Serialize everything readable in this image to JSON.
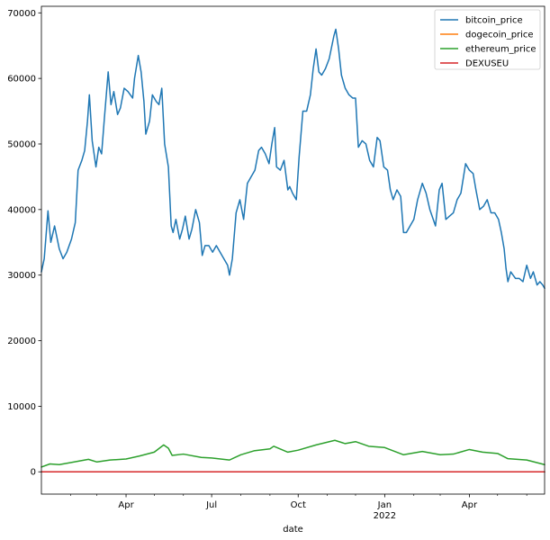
{
  "chart_data": {
    "type": "line",
    "xlabel": "date",
    "ylabel": "",
    "ylim": [
      -3400,
      71000
    ],
    "xlim": [
      "2021-01-01",
      "2022-06-20"
    ],
    "grid": false,
    "legend_position": "top-right",
    "y_ticks": [
      0,
      10000,
      20000,
      30000,
      40000,
      50000,
      60000,
      70000
    ],
    "x_ticks": [
      {
        "date": "2021-04-01",
        "label": "Apr",
        "sublabel": ""
      },
      {
        "date": "2021-07-01",
        "label": "Jul",
        "sublabel": ""
      },
      {
        "date": "2021-10-01",
        "label": "Oct",
        "sublabel": ""
      },
      {
        "date": "2022-01-01",
        "label": "Jan",
        "sublabel": "2022"
      },
      {
        "date": "2022-04-01",
        "label": "Apr",
        "sublabel": ""
      }
    ],
    "x_minor_ticks": [
      "2021-02-01",
      "2021-03-01",
      "2021-05-01",
      "2021-06-01",
      "2021-08-01",
      "2021-09-01",
      "2021-11-01",
      "2021-12-01",
      "2022-02-01",
      "2022-03-01",
      "2022-05-01",
      "2022-06-01"
    ],
    "series": [
      {
        "name": "bitcoin_price",
        "color": "#1f77b4",
        "points": [
          [
            "2021-01-01",
            30500
          ],
          [
            "2021-01-04",
            32500
          ],
          [
            "2021-01-08",
            39800
          ],
          [
            "2021-01-11",
            35000
          ],
          [
            "2021-01-15",
            37500
          ],
          [
            "2021-01-20",
            34000
          ],
          [
            "2021-01-24",
            32500
          ],
          [
            "2021-01-28",
            33500
          ],
          [
            "2021-02-02",
            35500
          ],
          [
            "2021-02-06",
            38000
          ],
          [
            "2021-02-09",
            46000
          ],
          [
            "2021-02-13",
            47500
          ],
          [
            "2021-02-16",
            49000
          ],
          [
            "2021-02-19",
            53500
          ],
          [
            "2021-02-21",
            57500
          ],
          [
            "2021-02-24",
            50500
          ],
          [
            "2021-02-28",
            46500
          ],
          [
            "2021-03-03",
            49500
          ],
          [
            "2021-03-06",
            48500
          ],
          [
            "2021-03-09",
            54000
          ],
          [
            "2021-03-13",
            61000
          ],
          [
            "2021-03-16",
            56000
          ],
          [
            "2021-03-19",
            58000
          ],
          [
            "2021-03-23",
            54500
          ],
          [
            "2021-03-26",
            55500
          ],
          [
            "2021-03-30",
            58500
          ],
          [
            "2021-04-03",
            58000
          ],
          [
            "2021-04-08",
            57000
          ],
          [
            "2021-04-10",
            60000
          ],
          [
            "2021-04-14",
            63500
          ],
          [
            "2021-04-17",
            61000
          ],
          [
            "2021-04-20",
            56500
          ],
          [
            "2021-04-22",
            51500
          ],
          [
            "2021-04-26",
            53500
          ],
          [
            "2021-04-29",
            57500
          ],
          [
            "2021-05-03",
            56500
          ],
          [
            "2021-05-06",
            56000
          ],
          [
            "2021-05-09",
            58500
          ],
          [
            "2021-05-12",
            50000
          ],
          [
            "2021-05-16",
            46500
          ],
          [
            "2021-05-19",
            37500
          ],
          [
            "2021-05-21",
            36500
          ],
          [
            "2021-05-24",
            38500
          ],
          [
            "2021-05-28",
            35500
          ],
          [
            "2021-05-31",
            37000
          ],
          [
            "2021-06-03",
            39000
          ],
          [
            "2021-06-07",
            35500
          ],
          [
            "2021-06-10",
            37000
          ],
          [
            "2021-06-14",
            40000
          ],
          [
            "2021-06-18",
            38000
          ],
          [
            "2021-06-21",
            33000
          ],
          [
            "2021-06-24",
            34500
          ],
          [
            "2021-06-28",
            34500
          ],
          [
            "2021-07-02",
            33500
          ],
          [
            "2021-07-06",
            34500
          ],
          [
            "2021-07-10",
            33500
          ],
          [
            "2021-07-14",
            32500
          ],
          [
            "2021-07-18",
            31500
          ],
          [
            "2021-07-20",
            30000
          ],
          [
            "2021-07-23",
            32500
          ],
          [
            "2021-07-27",
            39500
          ],
          [
            "2021-07-31",
            41500
          ],
          [
            "2021-08-04",
            38500
          ],
          [
            "2021-08-08",
            44000
          ],
          [
            "2021-08-12",
            45000
          ],
          [
            "2021-08-16",
            46000
          ],
          [
            "2021-08-20",
            49000
          ],
          [
            "2021-08-23",
            49500
          ],
          [
            "2021-08-27",
            48500
          ],
          [
            "2021-08-31",
            47000
          ],
          [
            "2021-09-03",
            50000
          ],
          [
            "2021-09-06",
            52500
          ],
          [
            "2021-09-08",
            46500
          ],
          [
            "2021-09-12",
            46000
          ],
          [
            "2021-09-16",
            47500
          ],
          [
            "2021-09-20",
            43000
          ],
          [
            "2021-09-22",
            43500
          ],
          [
            "2021-09-25",
            42500
          ],
          [
            "2021-09-29",
            41500
          ],
          [
            "2021-10-02",
            48000
          ],
          [
            "2021-10-06",
            55000
          ],
          [
            "2021-10-10",
            55000
          ],
          [
            "2021-10-14",
            57500
          ],
          [
            "2021-10-17",
            61500
          ],
          [
            "2021-10-20",
            64500
          ],
          [
            "2021-10-23",
            61000
          ],
          [
            "2021-10-26",
            60500
          ],
          [
            "2021-10-30",
            61500
          ],
          [
            "2021-11-03",
            63000
          ],
          [
            "2021-11-08",
            66500
          ],
          [
            "2021-11-10",
            67500
          ],
          [
            "2021-11-13",
            64500
          ],
          [
            "2021-11-16",
            60500
          ],
          [
            "2021-11-20",
            58500
          ],
          [
            "2021-11-24",
            57500
          ],
          [
            "2021-11-28",
            57000
          ],
          [
            "2021-12-01",
            57000
          ],
          [
            "2021-12-04",
            49500
          ],
          [
            "2021-12-08",
            50500
          ],
          [
            "2021-12-12",
            50000
          ],
          [
            "2021-12-16",
            47500
          ],
          [
            "2021-12-20",
            46500
          ],
          [
            "2021-12-24",
            51000
          ],
          [
            "2021-12-27",
            50500
          ],
          [
            "2021-12-31",
            46500
          ],
          [
            "2022-01-04",
            46000
          ],
          [
            "2022-01-07",
            43000
          ],
          [
            "2022-01-10",
            41500
          ],
          [
            "2022-01-14",
            43000
          ],
          [
            "2022-01-18",
            42000
          ],
          [
            "2022-01-21",
            36500
          ],
          [
            "2022-01-24",
            36500
          ],
          [
            "2022-01-28",
            37500
          ],
          [
            "2022-02-01",
            38500
          ],
          [
            "2022-02-05",
            41500
          ],
          [
            "2022-02-10",
            44000
          ],
          [
            "2022-02-14",
            42500
          ],
          [
            "2022-02-18",
            40000
          ],
          [
            "2022-02-24",
            37500
          ],
          [
            "2022-02-28",
            43000
          ],
          [
            "2022-03-03",
            44000
          ],
          [
            "2022-03-07",
            38500
          ],
          [
            "2022-03-11",
            39000
          ],
          [
            "2022-03-15",
            39500
          ],
          [
            "2022-03-19",
            41500
          ],
          [
            "2022-03-23",
            42500
          ],
          [
            "2022-03-28",
            47000
          ],
          [
            "2022-04-01",
            46000
          ],
          [
            "2022-04-05",
            45500
          ],
          [
            "2022-04-08",
            43000
          ],
          [
            "2022-04-12",
            40000
          ],
          [
            "2022-04-16",
            40500
          ],
          [
            "2022-04-20",
            41500
          ],
          [
            "2022-04-24",
            39500
          ],
          [
            "2022-04-28",
            39500
          ],
          [
            "2022-05-02",
            38500
          ],
          [
            "2022-05-05",
            36500
          ],
          [
            "2022-05-08",
            34000
          ],
          [
            "2022-05-10",
            31000
          ],
          [
            "2022-05-12",
            29000
          ],
          [
            "2022-05-15",
            30500
          ],
          [
            "2022-05-20",
            29500
          ],
          [
            "2022-05-24",
            29500
          ],
          [
            "2022-05-28",
            29000
          ],
          [
            "2022-06-01",
            31500
          ],
          [
            "2022-06-05",
            29500
          ],
          [
            "2022-06-08",
            30500
          ],
          [
            "2022-06-12",
            28500
          ],
          [
            "2022-06-15",
            29000
          ],
          [
            "2022-06-18",
            28500
          ],
          [
            "2022-06-20",
            28000
          ]
        ]
      },
      {
        "name": "dogecoin_price",
        "color": "#ff7f0e",
        "points": [
          [
            "2021-01-01",
            0.01
          ],
          [
            "2021-05-08",
            0.7
          ],
          [
            "2022-06-20",
            0.06
          ]
        ]
      },
      {
        "name": "ethereum_price",
        "color": "#2ca02c",
        "points": [
          [
            "2021-01-01",
            730
          ],
          [
            "2021-01-10",
            1200
          ],
          [
            "2021-01-20",
            1100
          ],
          [
            "2021-02-01",
            1400
          ],
          [
            "2021-02-20",
            1900
          ],
          [
            "2021-03-01",
            1500
          ],
          [
            "2021-03-15",
            1800
          ],
          [
            "2021-04-01",
            1950
          ],
          [
            "2021-04-15",
            2400
          ],
          [
            "2021-05-01",
            3000
          ],
          [
            "2021-05-11",
            4100
          ],
          [
            "2021-05-16",
            3600
          ],
          [
            "2021-05-20",
            2500
          ],
          [
            "2021-06-01",
            2700
          ],
          [
            "2021-06-20",
            2200
          ],
          [
            "2021-07-01",
            2100
          ],
          [
            "2021-07-20",
            1800
          ],
          [
            "2021-08-01",
            2600
          ],
          [
            "2021-08-15",
            3200
          ],
          [
            "2021-09-01",
            3500
          ],
          [
            "2021-09-05",
            3900
          ],
          [
            "2021-09-20",
            3000
          ],
          [
            "2021-10-01",
            3300
          ],
          [
            "2021-10-20",
            4100
          ],
          [
            "2021-11-09",
            4800
          ],
          [
            "2021-11-20",
            4300
          ],
          [
            "2021-12-01",
            4600
          ],
          [
            "2021-12-15",
            3900
          ],
          [
            "2022-01-01",
            3700
          ],
          [
            "2022-01-21",
            2600
          ],
          [
            "2022-02-10",
            3100
          ],
          [
            "2022-03-01",
            2600
          ],
          [
            "2022-03-15",
            2700
          ],
          [
            "2022-04-01",
            3400
          ],
          [
            "2022-04-15",
            3000
          ],
          [
            "2022-05-01",
            2800
          ],
          [
            "2022-05-12",
            2000
          ],
          [
            "2022-06-01",
            1800
          ],
          [
            "2022-06-20",
            1100
          ]
        ]
      },
      {
        "name": "DEXUSEU",
        "color": "#d62728",
        "points": [
          [
            "2021-01-01",
            1.22
          ],
          [
            "2021-06-01",
            1.22
          ],
          [
            "2022-01-01",
            1.13
          ],
          [
            "2022-06-20",
            1.05
          ]
        ]
      }
    ]
  }
}
